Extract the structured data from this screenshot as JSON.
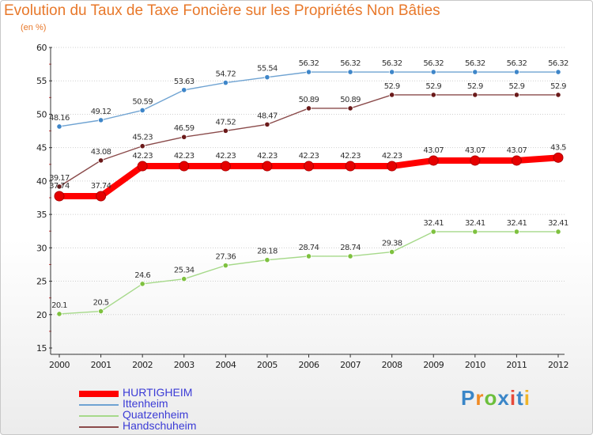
{
  "title": "Evolution du Taux de Taxe Foncière sur les Propriétés Non Bâties",
  "unit_label": "(en %)",
  "logo": {
    "letters": [
      "P",
      "r",
      "o",
      "x",
      "i",
      "t",
      "i"
    ],
    "colors": [
      "#3a86c8",
      "#f08a24",
      "#6cbf3c",
      "#3a86c8",
      "#e64a3a",
      "#3a86c8",
      "#f0b428"
    ]
  },
  "chart_data": {
    "type": "line",
    "title": "Evolution du Taux de Taxe Foncière sur les Propriétés Non Bâties",
    "ylabel": "(en %)",
    "xlabel": "",
    "ylim": [
      15,
      60
    ],
    "yticks": [
      15,
      20,
      25,
      30,
      35,
      40,
      45,
      50,
      55,
      60
    ],
    "x": [
      "2000",
      "2001",
      "2002",
      "2003",
      "2004",
      "2005",
      "2006",
      "2007",
      "2008",
      "2009",
      "2010",
      "2011",
      "2012"
    ],
    "grid": "horizontal dotted",
    "legend_position": "bottom-left",
    "series": [
      {
        "name": "Ittenheim",
        "color": "#6fa3d2",
        "marker": "#3e86c9",
        "values": [
          48.16,
          49.12,
          50.59,
          53.63,
          54.72,
          55.54,
          56.32,
          56.32,
          56.32,
          56.32,
          56.32,
          56.32,
          56.32
        ],
        "labels": [
          "48.16",
          "49.12",
          "50.59",
          "53.63",
          "54.72",
          "55.54",
          "56.32",
          "56.32",
          "56.32",
          "56.32",
          "56.32",
          "56.32",
          "56.32"
        ]
      },
      {
        "name": "Handschuheim",
        "color": "#8a4a4a",
        "marker": "#6b1a1a",
        "values": [
          39.17,
          43.08,
          45.23,
          46.59,
          47.52,
          48.47,
          50.89,
          50.89,
          52.9,
          52.9,
          52.9,
          52.9,
          52.9
        ],
        "labels": [
          "39.17",
          "43.08",
          "45.23",
          "46.59",
          "47.52",
          "48.47",
          "50.89",
          "50.89",
          "52.9",
          "52.9",
          "52.9",
          "52.9",
          "52.9"
        ]
      },
      {
        "name": "HURTIGHEIM",
        "color": "#ff0000",
        "marker": "#e60000",
        "values": [
          37.74,
          37.74,
          42.23,
          42.23,
          42.23,
          42.23,
          42.23,
          42.23,
          42.23,
          43.07,
          43.07,
          43.07,
          43.5
        ],
        "labels": [
          "37.74",
          "37.74",
          "42.23",
          "42.23",
          "42.23",
          "42.23",
          "42.23",
          "42.23",
          "42.23",
          "43.07",
          "43.07",
          "43.07",
          "43.5"
        ]
      },
      {
        "name": "Quatzenheim",
        "color": "#a6d98a",
        "marker": "#7ec13f",
        "values": [
          20.1,
          20.5,
          24.6,
          25.34,
          27.36,
          28.18,
          28.74,
          28.74,
          29.38,
          32.41,
          32.41,
          32.41,
          32.41
        ],
        "labels": [
          "20.1",
          "20.5",
          "24.6",
          "25.34",
          "27.36",
          "28.18",
          "28.74",
          "28.74",
          "29.38",
          "32.41",
          "32.41",
          "32.41",
          "32.41"
        ]
      }
    ],
    "legend": [
      "HURTIGHEIM",
      "Ittenheim",
      "Quatzenheim",
      "Handschuheim"
    ]
  }
}
